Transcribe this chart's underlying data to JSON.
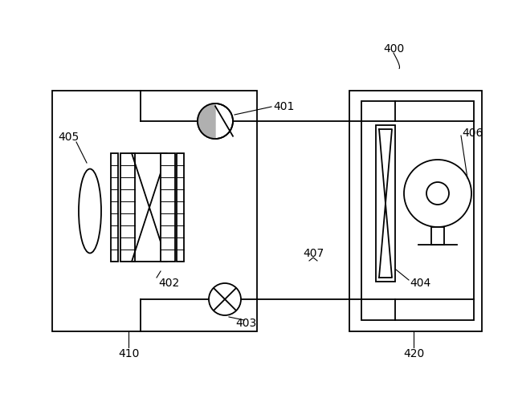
{
  "bg_color": "#ffffff",
  "line_color": "#000000",
  "fig_width": 6.4,
  "fig_height": 5.21,
  "dpi": 100,
  "lw": 1.3,
  "fs": 10
}
